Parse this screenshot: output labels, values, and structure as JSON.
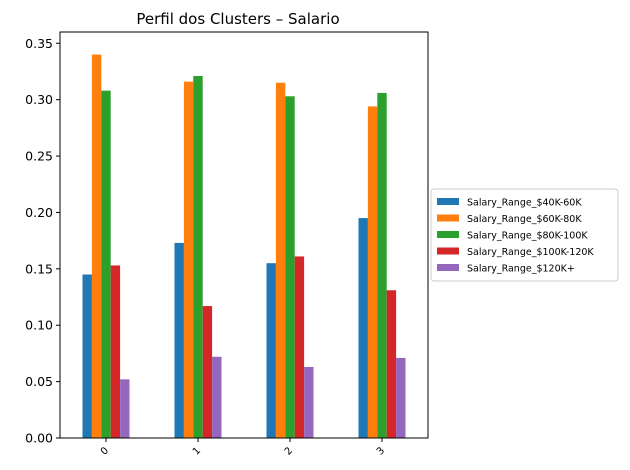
{
  "chart_data": {
    "type": "bar",
    "title": "Perfil dos Clusters – Salario",
    "xlabel": "",
    "ylabel": "",
    "categories": [
      "0",
      "1",
      "2",
      "3"
    ],
    "ylim": [
      0,
      0.36
    ],
    "yticks": [
      "0.00",
      "0.05",
      "0.10",
      "0.15",
      "0.20",
      "0.25",
      "0.30",
      "0.35"
    ],
    "grid": false,
    "legend_position": "right-center",
    "series": [
      {
        "name": "Salary_Range_$40K-60K",
        "color": "#1f77b4",
        "values": [
          0.145,
          0.173,
          0.155,
          0.195
        ]
      },
      {
        "name": "Salary_Range_$60K-80K",
        "color": "#ff7f0e",
        "values": [
          0.34,
          0.316,
          0.315,
          0.294
        ]
      },
      {
        "name": "Salary_Range_$80K-100K",
        "color": "#2ca02c",
        "values": [
          0.308,
          0.321,
          0.303,
          0.306
        ]
      },
      {
        "name": "Salary_Range_$100K-120K",
        "color": "#d62728",
        "values": [
          0.153,
          0.117,
          0.161,
          0.131
        ]
      },
      {
        "name": "Salary_Range_$120K+",
        "color": "#9467bd",
        "values": [
          0.052,
          0.072,
          0.063,
          0.071
        ]
      }
    ]
  }
}
